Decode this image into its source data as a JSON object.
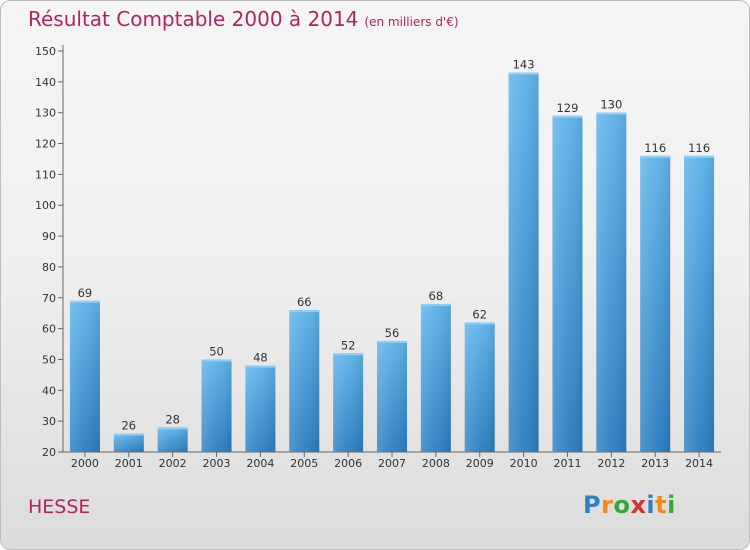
{
  "header": {
    "title": "Résultat Comptable 2000 à 2014",
    "unit": "(en milliers d'€)"
  },
  "footer": {
    "place": "HESSE",
    "logo": [
      "P",
      "r",
      "o",
      "x",
      "i",
      "t",
      "i"
    ],
    "logo_colors": [
      "#2f7fc6",
      "#f08a1c",
      "#3aa63a",
      "#d92f2f",
      "#2f7fc6",
      "#f08a1c",
      "#3aa63a"
    ]
  },
  "chart_data": {
    "type": "bar",
    "categories": [
      "2000",
      "2001",
      "2002",
      "2003",
      "2004",
      "2005",
      "2006",
      "2007",
      "2008",
      "2009",
      "2010",
      "2011",
      "2012",
      "2013",
      "2014"
    ],
    "values": [
      69,
      26,
      28,
      50,
      48,
      66,
      52,
      56,
      68,
      62,
      143,
      129,
      130,
      116,
      116
    ],
    "ylim": [
      20,
      150
    ],
    "yticks": [
      20,
      30,
      40,
      50,
      60,
      70,
      80,
      90,
      100,
      110,
      120,
      130,
      140,
      150
    ],
    "grid": false,
    "bar_color": "#3f97d8"
  }
}
